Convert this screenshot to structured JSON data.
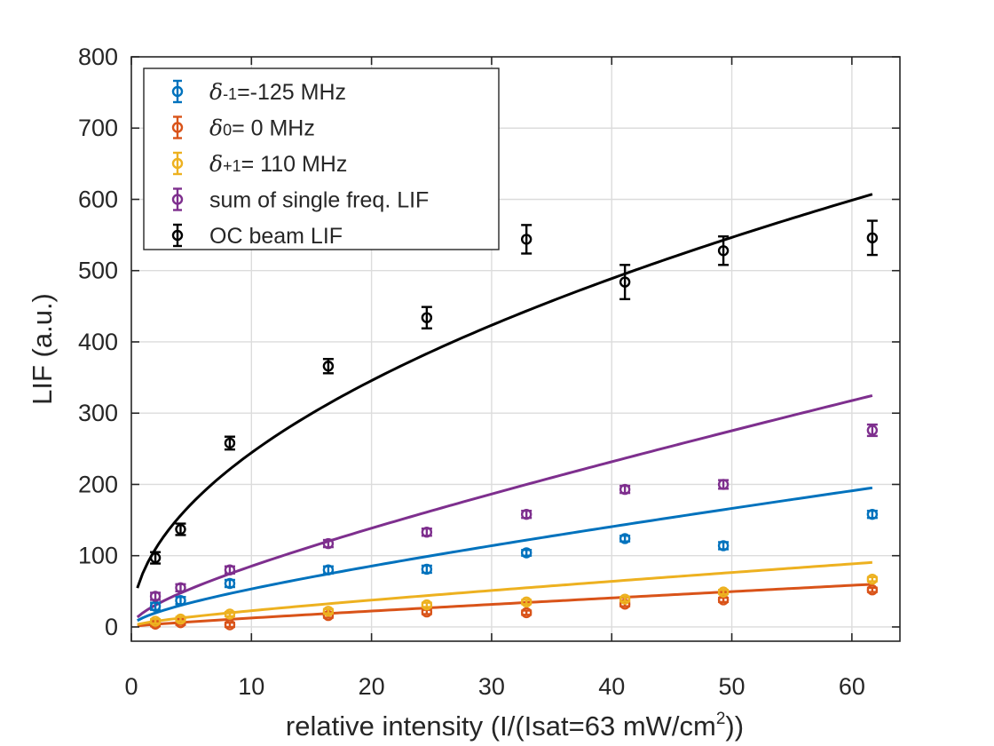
{
  "chart_data": {
    "type": "scatter",
    "title": "",
    "xlabel": "relative intensity (I/(Isat=63 mW/cm",
    "xlabel_sup": "2",
    "xlabel_end": "))",
    "ylabel": "LIF (a.u.)",
    "xlim": [
      0,
      64
    ],
    "ylim": [
      -20,
      800
    ],
    "xticks": [
      0,
      10,
      20,
      30,
      40,
      50,
      60
    ],
    "yticks": [
      0,
      100,
      200,
      300,
      400,
      500,
      600,
      700,
      800
    ],
    "xtick_labels": [
      "0",
      "10",
      "20",
      "30",
      "40",
      "50",
      "60"
    ],
    "ytick_labels": [
      "0",
      "100",
      "200",
      "300",
      "400",
      "500",
      "600",
      "700",
      "800"
    ],
    "grid": true,
    "legend_position": "top-left",
    "x": [
      2.0,
      4.1,
      8.2,
      16.4,
      24.6,
      32.9,
      41.1,
      49.3,
      61.7
    ],
    "series": [
      {
        "name": "δ-1=-125 MHz",
        "legend_symbol": "δ",
        "legend_sub": "-1",
        "legend_rest": "=-125 MHz",
        "color": "#0072BD",
        "values": [
          29,
          37,
          61,
          80,
          81,
          104,
          124,
          114,
          158
        ],
        "errors": [
          5,
          5,
          5,
          5,
          5,
          4,
          4,
          5,
          5
        ],
        "fit": {
          "a": 11.5,
          "b": 1.7
        }
      },
      {
        "name": "δ0= 0 MHz",
        "legend_symbol": "δ",
        "legend_sub": "0",
        "legend_rest": "= 0 MHz",
        "color": "#D95319",
        "values": [
          4,
          6,
          3,
          16,
          21,
          20,
          32,
          38,
          52
        ],
        "errors": [
          3,
          3,
          3,
          3,
          3,
          3,
          3,
          3,
          3
        ],
        "fit": {
          "a": 1.5,
          "b": 0.78
        }
      },
      {
        "name": "δ+1= 110 MHz",
        "legend_symbol": "δ",
        "legend_sub": "+1",
        "legend_rest": "= 110 MHz",
        "color": "#EDB120",
        "values": [
          8,
          11,
          18,
          22,
          31,
          35,
          39,
          49,
          67
        ],
        "errors": [
          3,
          3,
          3,
          3,
          3,
          3,
          3,
          3,
          3
        ],
        "fit": {
          "a": 4.3,
          "b": 0.92
        }
      },
      {
        "name": "sum of single freq. LIF",
        "legend_symbol": "",
        "legend_sub": "",
        "legend_rest": "sum of single freq. LIF",
        "color": "#7E2F8E",
        "values": [
          43,
          55,
          80,
          117,
          133,
          158,
          193,
          200,
          276
        ],
        "errors": [
          5,
          5,
          5,
          5,
          5,
          5,
          5,
          6,
          8
        ],
        "fit": {
          "a": 17.3,
          "b": 3.06
        }
      },
      {
        "name": "OC beam LIF",
        "legend_symbol": "",
        "legend_sub": "",
        "legend_rest": "OC beam LIF",
        "color": "#000000",
        "values": [
          97,
          137,
          258,
          366,
          434,
          544,
          484,
          528,
          546
        ],
        "errors": [
          8,
          8,
          9,
          10,
          15,
          20,
          24,
          20,
          24
        ],
        "fit": {
          "a": 77.3,
          "b": 0
        }
      }
    ]
  }
}
